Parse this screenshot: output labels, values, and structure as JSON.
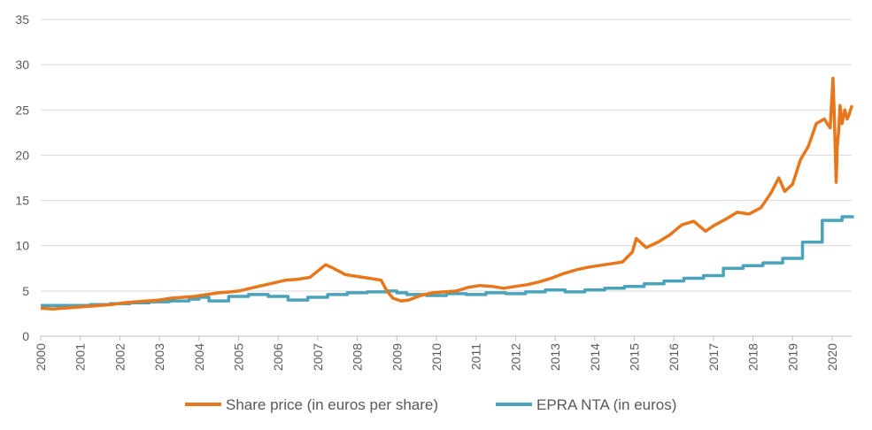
{
  "chart_data": {
    "type": "line",
    "title": "",
    "xlabel": "",
    "ylabel": "",
    "xlim": [
      2000.0,
      2020.55
    ],
    "ylim": [
      0,
      35
    ],
    "y_ticks": [
      0,
      5,
      10,
      15,
      20,
      25,
      30,
      35
    ],
    "x_tick_labels": [
      "2000",
      "2001",
      "2002",
      "2003",
      "2004",
      "2005",
      "2006",
      "2007",
      "2008",
      "2009",
      "2010",
      "2011",
      "2012",
      "2013",
      "2014",
      "2015",
      "2016",
      "2017",
      "2018",
      "2019",
      "2020"
    ],
    "grid": "horizontal",
    "legend_position": "bottom",
    "series": [
      {
        "name": "Share price (in euros per share)",
        "color": "#E8761B",
        "x": [
          2000.0,
          2000.3,
          2000.6,
          2000.9,
          2001.2,
          2001.5,
          2001.8,
          2002.1,
          2002.4,
          2002.7,
          2003.0,
          2003.3,
          2003.6,
          2003.9,
          2004.2,
          2004.5,
          2004.8,
          2005.0,
          2005.3,
          2005.6,
          2005.9,
          2006.2,
          2006.5,
          2006.8,
          2007.0,
          2007.2,
          2007.4,
          2007.7,
          2008.0,
          2008.3,
          2008.6,
          2008.75,
          2008.9,
          2009.1,
          2009.3,
          2009.6,
          2009.9,
          2010.2,
          2010.5,
          2010.8,
          2011.1,
          2011.4,
          2011.7,
          2012.0,
          2012.3,
          2012.6,
          2012.9,
          2013.2,
          2013.5,
          2013.8,
          2014.1,
          2014.4,
          2014.7,
          2014.95,
          2015.05,
          2015.3,
          2015.6,
          2015.9,
          2016.2,
          2016.5,
          2016.8,
          2017.0,
          2017.3,
          2017.6,
          2017.9,
          2018.2,
          2018.45,
          2018.65,
          2018.8,
          2019.0,
          2019.2,
          2019.4,
          2019.6,
          2019.8,
          2019.95,
          2020.02,
          2020.06,
          2020.1,
          2020.13,
          2020.17,
          2020.2,
          2020.25,
          2020.32,
          2020.38,
          2020.43,
          2020.5
        ],
        "values": [
          3.1,
          3.0,
          3.1,
          3.2,
          3.3,
          3.4,
          3.5,
          3.7,
          3.8,
          3.9,
          4.0,
          4.2,
          4.3,
          4.4,
          4.6,
          4.8,
          4.9,
          5.0,
          5.3,
          5.6,
          5.9,
          6.2,
          6.3,
          6.5,
          7.2,
          7.9,
          7.5,
          6.8,
          6.6,
          6.4,
          6.2,
          5.0,
          4.2,
          3.9,
          4.0,
          4.5,
          4.8,
          4.9,
          5.0,
          5.4,
          5.6,
          5.5,
          5.3,
          5.5,
          5.7,
          6.0,
          6.4,
          6.9,
          7.3,
          7.6,
          7.8,
          8.0,
          8.2,
          9.3,
          10.8,
          9.8,
          10.4,
          11.2,
          12.3,
          12.7,
          11.6,
          12.2,
          12.9,
          13.7,
          13.5,
          14.2,
          15.8,
          17.5,
          16.0,
          16.8,
          19.5,
          21.0,
          23.5,
          24.0,
          23.0,
          28.5,
          23.5,
          17.0,
          21.0,
          23.0,
          25.5,
          23.5,
          25.0,
          24.0,
          24.5,
          25.5
        ]
      },
      {
        "name": "EPRA NTA (in euros)",
        "color": "#4BA3BB",
        "x": [
          2000.0,
          2001.0,
          2001.25,
          2001.75,
          2002.25,
          2002.75,
          2003.25,
          2003.75,
          2004.0,
          2004.25,
          2004.75,
          2005.25,
          2005.75,
          2006.25,
          2006.75,
          2007.25,
          2007.75,
          2008.25,
          2008.75,
          2009.0,
          2009.25,
          2009.75,
          2010.25,
          2010.75,
          2011.25,
          2011.75,
          2012.25,
          2012.75,
          2013.25,
          2013.75,
          2014.25,
          2014.75,
          2015.25,
          2015.75,
          2016.25,
          2016.75,
          2017.25,
          2017.75,
          2018.25,
          2018.75,
          2019.25,
          2019.75,
          2020.25,
          2020.55
        ],
        "values": [
          3.4,
          3.4,
          3.5,
          3.6,
          3.7,
          3.8,
          3.9,
          4.1,
          4.3,
          3.9,
          4.4,
          4.6,
          4.4,
          4.0,
          4.3,
          4.6,
          4.8,
          4.9,
          5.0,
          4.8,
          4.6,
          4.5,
          4.7,
          4.6,
          4.8,
          4.7,
          4.9,
          5.1,
          4.9,
          5.1,
          5.3,
          5.5,
          5.8,
          6.1,
          6.4,
          6.7,
          7.5,
          7.8,
          8.1,
          8.6,
          10.4,
          12.8,
          13.2,
          13.2
        ]
      }
    ]
  }
}
